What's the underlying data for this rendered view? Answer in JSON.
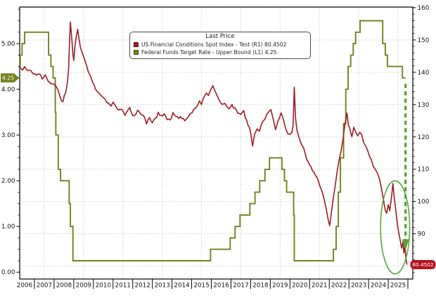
{
  "legend": {
    "title": "Last Price",
    "entries": [
      {
        "text": "US Financial Conditions Spot Index - Test  (R1) 80.4502",
        "color": "#9e1b23"
      },
      {
        "text": "Federal Funds Target Rate - Upper Bound  (L1) 4.25",
        "color": "#75801a"
      }
    ]
  },
  "badges": {
    "left": {
      "text": "4.25",
      "value": 4.25,
      "color": "#75801a",
      "text_color": "#ffffff"
    },
    "right": {
      "text": "80.4502",
      "value": 80.4502,
      "color": "#b8101e",
      "text_color": "#ffffff"
    }
  },
  "chart_data": {
    "type": "line",
    "title": "",
    "legend_title": "Last Price",
    "x_axis": {
      "range": [
        2006.25,
        2026.25
      ],
      "year_labels": [
        "2006",
        "2007",
        "2008",
        "2009",
        "2010",
        "2011",
        "2012",
        "2013",
        "2014",
        "2015",
        "2016",
        "2017",
        "2018",
        "2019",
        "2020",
        "2021",
        "2022",
        "2023",
        "2024",
        "2025"
      ],
      "tick_year_start": 2007,
      "tick_year_end": 2026,
      "gridline_years": [
        2007.5,
        2009.5,
        2011.5,
        2013.5,
        2015.5,
        2017.5,
        2019.5,
        2021.5,
        2023.5,
        2025.5
      ]
    },
    "left_axis": {
      "range": [
        -0.15,
        5.8
      ],
      "major_values": [
        5,
        4,
        3,
        2,
        1,
        0
      ],
      "major_labels": [
        "5.00",
        "4.00",
        "3.00",
        "2.00",
        "1.00",
        "0.00"
      ],
      "minor_step": 0.25
    },
    "right_axis": {
      "range": [
        76.0,
        160.2
      ],
      "major_values": [
        160,
        150,
        140,
        130,
        120,
        110,
        100,
        90
      ],
      "major_labels": [
        "160",
        "150",
        "140",
        "130",
        "120",
        "110",
        "100",
        "90"
      ],
      "gridline_values": [
        80,
        90,
        100,
        110,
        120,
        130,
        140,
        150,
        160
      ],
      "minor_step": 2
    },
    "grid_color": "#b3b3b3",
    "frame_color": "#000000",
    "series": [
      {
        "id": "R1",
        "name": "US Financial Conditions Spot Index - Test",
        "axis": "right",
        "style": "line",
        "color": "#9e1b23",
        "last_value": 80.4502,
        "points": [
          [
            2006.25,
            141.5
          ],
          [
            2006.4,
            140.8
          ],
          [
            2006.5,
            141.6
          ],
          [
            2006.65,
            140.2
          ],
          [
            2006.8,
            140.8
          ],
          [
            2006.95,
            139.6
          ],
          [
            2007.1,
            139.0
          ],
          [
            2007.25,
            139.8
          ],
          [
            2007.4,
            138.2
          ],
          [
            2007.55,
            138.8
          ],
          [
            2007.7,
            137.4
          ],
          [
            2007.85,
            136.6
          ],
          [
            2008.0,
            136.2
          ],
          [
            2008.1,
            135.4
          ],
          [
            2008.25,
            133.8
          ],
          [
            2008.37,
            131.6
          ],
          [
            2008.45,
            130.9
          ],
          [
            2008.52,
            132.8
          ],
          [
            2008.6,
            133.5
          ],
          [
            2008.68,
            136.5
          ],
          [
            2008.74,
            141.0
          ],
          [
            2008.78,
            148.0
          ],
          [
            2008.83,
            155.9
          ],
          [
            2008.87,
            152.5
          ],
          [
            2008.91,
            149.5
          ],
          [
            2008.96,
            146.0
          ],
          [
            2009.0,
            143.6
          ],
          [
            2009.06,
            147.5
          ],
          [
            2009.12,
            150.5
          ],
          [
            2009.2,
            153.6
          ],
          [
            2009.28,
            150.0
          ],
          [
            2009.35,
            147.5
          ],
          [
            2009.45,
            145.6
          ],
          [
            2009.55,
            144.0
          ],
          [
            2009.65,
            141.8
          ],
          [
            2009.75,
            140.0
          ],
          [
            2009.85,
            138.6
          ],
          [
            2009.95,
            137.0
          ],
          [
            2010.1,
            135.3
          ],
          [
            2010.2,
            134.0
          ],
          [
            2010.35,
            133.2
          ],
          [
            2010.5,
            132.4
          ],
          [
            2010.6,
            131.3
          ],
          [
            2010.75,
            130.3
          ],
          [
            2010.9,
            129.8
          ],
          [
            2011.0,
            130.9
          ],
          [
            2011.15,
            129.6
          ],
          [
            2011.3,
            128.2
          ],
          [
            2011.45,
            128.9
          ],
          [
            2011.6,
            126.6
          ],
          [
            2011.75,
            127.8
          ],
          [
            2011.85,
            129.2
          ],
          [
            2012.0,
            126.3
          ],
          [
            2012.15,
            127.3
          ],
          [
            2012.25,
            128.6
          ],
          [
            2012.4,
            127.4
          ],
          [
            2012.55,
            126.6
          ],
          [
            2012.7,
            124.0
          ],
          [
            2012.85,
            125.8
          ],
          [
            2013.0,
            124.4
          ],
          [
            2013.15,
            125.6
          ],
          [
            2013.3,
            127.5
          ],
          [
            2013.45,
            126.3
          ],
          [
            2013.6,
            126.8
          ],
          [
            2013.75,
            125.7
          ],
          [
            2013.9,
            125.3
          ],
          [
            2014.05,
            127.4
          ],
          [
            2014.2,
            126.6
          ],
          [
            2014.35,
            126.1
          ],
          [
            2014.5,
            125.8
          ],
          [
            2014.65,
            124.9
          ],
          [
            2014.8,
            126.2
          ],
          [
            2014.95,
            127.1
          ],
          [
            2015.1,
            128.1
          ],
          [
            2015.25,
            129.6
          ],
          [
            2015.4,
            131.2
          ],
          [
            2015.5,
            130.3
          ],
          [
            2015.65,
            132.8
          ],
          [
            2015.75,
            133.6
          ],
          [
            2015.85,
            132.5
          ],
          [
            2015.95,
            134.3
          ],
          [
            2016.08,
            135.9
          ],
          [
            2016.2,
            134.2
          ],
          [
            2016.3,
            132.6
          ],
          [
            2016.42,
            131.4
          ],
          [
            2016.55,
            129.9
          ],
          [
            2016.68,
            130.8
          ],
          [
            2016.8,
            129.5
          ],
          [
            2016.9,
            128.8
          ],
          [
            2017.05,
            129.9
          ],
          [
            2017.2,
            128.6
          ],
          [
            2017.35,
            127.5
          ],
          [
            2017.5,
            127.0
          ],
          [
            2017.65,
            128.0
          ],
          [
            2017.8,
            125.0
          ],
          [
            2017.95,
            122.8
          ],
          [
            2018.1,
            117.6
          ],
          [
            2018.2,
            120.5
          ],
          [
            2018.33,
            122.3
          ],
          [
            2018.45,
            121.6
          ],
          [
            2018.6,
            124.4
          ],
          [
            2018.75,
            126.2
          ],
          [
            2018.9,
            127.4
          ],
          [
            2019.03,
            128.6
          ],
          [
            2019.15,
            125.0
          ],
          [
            2019.27,
            121.8
          ],
          [
            2019.4,
            124.6
          ],
          [
            2019.55,
            127.4
          ],
          [
            2019.65,
            125.4
          ],
          [
            2019.78,
            122.2
          ],
          [
            2019.9,
            121.0
          ],
          [
            2020.0,
            120.4
          ],
          [
            2020.1,
            121.6
          ],
          [
            2020.16,
            124.0
          ],
          [
            2020.22,
            135.7
          ],
          [
            2020.28,
            126.0
          ],
          [
            2020.35,
            122.5
          ],
          [
            2020.45,
            120.2
          ],
          [
            2020.58,
            118.0
          ],
          [
            2020.7,
            116.2
          ],
          [
            2020.85,
            113.4
          ],
          [
            2021.0,
            111.2
          ],
          [
            2021.15,
            109.8
          ],
          [
            2021.3,
            108.4
          ],
          [
            2021.45,
            106.2
          ],
          [
            2021.6,
            103.4
          ],
          [
            2021.75,
            100.6
          ],
          [
            2021.85,
            97.8
          ],
          [
            2021.95,
            94.6
          ],
          [
            2022.02,
            92.3
          ],
          [
            2022.1,
            96.0
          ],
          [
            2022.2,
            100.5
          ],
          [
            2022.3,
            105.0
          ],
          [
            2022.4,
            109.2
          ],
          [
            2022.5,
            112.6
          ],
          [
            2022.6,
            115.8
          ],
          [
            2022.7,
            119.4
          ],
          [
            2022.8,
            123.6
          ],
          [
            2022.9,
            127.2
          ],
          [
            2022.97,
            124.0
          ],
          [
            2023.05,
            122.4
          ],
          [
            2023.15,
            119.8
          ],
          [
            2023.25,
            122.6
          ],
          [
            2023.35,
            121.2
          ],
          [
            2023.45,
            120.6
          ],
          [
            2023.55,
            121.8
          ],
          [
            2023.65,
            120.9
          ],
          [
            2023.75,
            118.4
          ],
          [
            2023.85,
            117.0
          ],
          [
            2023.95,
            115.4
          ],
          [
            2024.05,
            114.2
          ],
          [
            2024.15,
            112.4
          ],
          [
            2024.25,
            111.0
          ],
          [
            2024.35,
            110.0
          ],
          [
            2024.45,
            108.6
          ],
          [
            2024.55,
            107.0
          ],
          [
            2024.65,
            104.0
          ],
          [
            2024.75,
            100.8
          ],
          [
            2024.85,
            97.6
          ],
          [
            2024.92,
            96.2
          ],
          [
            2025.0,
            99.0
          ],
          [
            2025.08,
            97.2
          ],
          [
            2025.16,
            100.8
          ],
          [
            2025.24,
            105.8
          ],
          [
            2025.3,
            101.4
          ],
          [
            2025.38,
            97.6
          ],
          [
            2025.45,
            94.0
          ],
          [
            2025.52,
            91.2
          ],
          [
            2025.6,
            88.4
          ],
          [
            2025.68,
            85.8
          ],
          [
            2025.75,
            87.6
          ],
          [
            2025.8,
            84.4
          ],
          [
            2025.85,
            86.2
          ],
          [
            2025.9,
            82.6
          ],
          [
            2025.95,
            80.4502
          ]
        ]
      },
      {
        "id": "L1",
        "name": "Federal Funds Target Rate - Upper Bound",
        "axis": "left",
        "style": "step",
        "color": "#75801a",
        "last_value": 4.25,
        "end_t": 2025.88,
        "points": [
          [
            2006.25,
            4.5
          ],
          [
            2006.28,
            4.75
          ],
          [
            2006.37,
            5.0
          ],
          [
            2006.5,
            5.25
          ],
          [
            2007.72,
            4.75
          ],
          [
            2007.84,
            4.5
          ],
          [
            2007.95,
            4.25
          ],
          [
            2008.06,
            3.5
          ],
          [
            2008.09,
            3.0
          ],
          [
            2008.21,
            2.25
          ],
          [
            2008.33,
            2.0
          ],
          [
            2008.77,
            1.5
          ],
          [
            2008.83,
            1.0
          ],
          [
            2008.96,
            0.25
          ],
          [
            2015.96,
            0.5
          ],
          [
            2016.96,
            0.75
          ],
          [
            2017.21,
            1.0
          ],
          [
            2017.46,
            1.25
          ],
          [
            2017.96,
            1.5
          ],
          [
            2018.22,
            1.75
          ],
          [
            2018.46,
            2.0
          ],
          [
            2018.73,
            2.25
          ],
          [
            2018.96,
            2.5
          ],
          [
            2019.59,
            2.25
          ],
          [
            2019.72,
            2.0
          ],
          [
            2019.83,
            1.75
          ],
          [
            2020.19,
            1.25
          ],
          [
            2020.22,
            0.25
          ],
          [
            2022.21,
            0.5
          ],
          [
            2022.35,
            1.0
          ],
          [
            2022.46,
            1.75
          ],
          [
            2022.57,
            2.5
          ],
          [
            2022.73,
            3.25
          ],
          [
            2022.84,
            4.0
          ],
          [
            2022.96,
            4.5
          ],
          [
            2023.09,
            4.75
          ],
          [
            2023.22,
            5.0
          ],
          [
            2023.34,
            5.25
          ],
          [
            2023.57,
            5.5
          ],
          [
            2024.72,
            5.0
          ],
          [
            2024.85,
            4.75
          ],
          [
            2024.96,
            4.5
          ],
          [
            2025.72,
            4.25
          ]
        ]
      }
    ],
    "annotations": {
      "ellipse": {
        "cx_t": 2025.35,
        "cy_right_value": 92.0,
        "rx_years": 0.74,
        "ry_right_units": 14.4,
        "color": "#53a233"
      },
      "arrow": {
        "t": 2025.88,
        "from_left_value": 4.12,
        "to_left_value": 0.72,
        "tip_left_value": 0.48,
        "color": "#53a233"
      }
    }
  }
}
